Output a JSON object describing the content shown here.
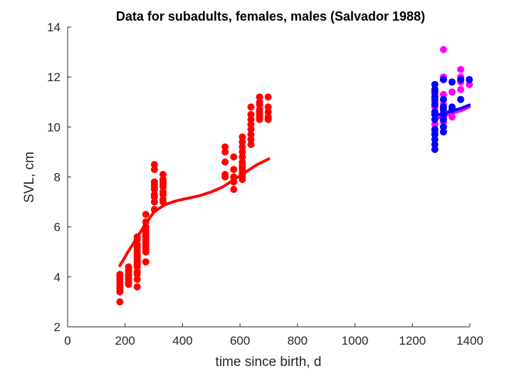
{
  "chart_data": {
    "type": "scatter",
    "title": "Data for subadults, females, males (Salvador 1988)",
    "xlabel": "time since birth, d",
    "ylabel": "SVL, cm",
    "xlim": [
      0,
      1400
    ],
    "ylim": [
      2,
      14
    ],
    "xticks": [
      "0",
      "200",
      "400",
      "600",
      "800",
      "1000",
      "1200",
      "1400"
    ],
    "yticks": [
      "2",
      "4",
      "6",
      "8",
      "10",
      "12",
      "14"
    ],
    "grid": false,
    "legend": "none",
    "colors": {
      "subadults": "#ff0000",
      "females": "#ff00ff",
      "males": "#0000ff"
    },
    "series": [
      {
        "kind": "points",
        "color": "#ff0000",
        "x": [
          182,
          182,
          182,
          182,
          182,
          182,
          182,
          182,
          182,
          212,
          212,
          212,
          212,
          212,
          212,
          212,
          212,
          212,
          212,
          212,
          242,
          242,
          242,
          242,
          242,
          242,
          242,
          242,
          242,
          242,
          242,
          242,
          242,
          242,
          242,
          242,
          272,
          272,
          272,
          272,
          272,
          272,
          272,
          272,
          272,
          272,
          272,
          272,
          272,
          272,
          302,
          302,
          302,
          302,
          302,
          302,
          302,
          302,
          302,
          302,
          332,
          332,
          332,
          332,
          332,
          332,
          332,
          332,
          332,
          548,
          548,
          548,
          548,
          548,
          578,
          578,
          578,
          578,
          578,
          608,
          608,
          608,
          608,
          608,
          608,
          608,
          608,
          608,
          608,
          608,
          608,
          608,
          638,
          638,
          638,
          638,
          638,
          638,
          638,
          638,
          668,
          668,
          668,
          668,
          668,
          668,
          668,
          668,
          698,
          698,
          698,
          698,
          698
        ],
        "y": [
          3.0,
          3.4,
          3.5,
          3.6,
          3.7,
          3.8,
          3.9,
          4.0,
          4.1,
          3.7,
          3.8,
          3.9,
          4.0,
          4.1,
          4.2,
          4.3,
          4.4,
          3.75,
          3.95,
          4.05,
          3.6,
          3.9,
          4.1,
          4.2,
          4.4,
          4.5,
          4.6,
          4.7,
          4.8,
          4.9,
          5.0,
          5.1,
          5.2,
          5.3,
          5.5,
          5.6,
          4.6,
          5.0,
          5.1,
          5.3,
          5.4,
          5.5,
          5.6,
          5.7,
          5.8,
          5.9,
          6.0,
          6.2,
          6.5,
          5.2,
          6.7,
          7.0,
          7.2,
          7.3,
          7.5,
          7.6,
          7.7,
          7.8,
          8.3,
          8.5,
          7.0,
          7.1,
          7.3,
          7.4,
          7.6,
          7.7,
          7.8,
          7.9,
          8.1,
          8.0,
          8.1,
          8.6,
          9.0,
          9.2,
          7.5,
          7.8,
          8.0,
          8.3,
          8.8,
          7.9,
          8.0,
          8.1,
          8.2,
          8.3,
          8.4,
          8.5,
          8.6,
          8.8,
          9.0,
          9.2,
          9.4,
          9.6,
          9.3,
          9.5,
          9.7,
          9.9,
          10.1,
          10.3,
          10.5,
          10.8,
          10.3,
          10.4,
          10.5,
          10.6,
          10.7,
          10.9,
          11.0,
          11.2,
          10.3,
          10.4,
          10.6,
          10.8,
          11.2
        ]
      },
      {
        "kind": "curve",
        "color": "#ff0000",
        "x": [
          182,
          210,
          240,
          270,
          300,
          340,
          380,
          420,
          460,
          500,
          540,
          580,
          620,
          660,
          700
        ],
        "y": [
          4.45,
          5.0,
          5.55,
          6.1,
          6.6,
          6.9,
          7.05,
          7.15,
          7.25,
          7.4,
          7.6,
          7.9,
          8.2,
          8.5,
          8.72
        ]
      },
      {
        "kind": "points",
        "color": "#ff00ff",
        "x": [
          1278,
          1278,
          1278,
          1278,
          1278,
          1278,
          1278,
          1308,
          1308,
          1308,
          1308,
          1308,
          1308,
          1308,
          1308,
          1338,
          1338,
          1338,
          1368,
          1368,
          1368,
          1368,
          1398
        ],
        "y": [
          9.8,
          10.1,
          10.5,
          10.8,
          11.0,
          11.3,
          11.5,
          10.2,
          10.4,
          10.6,
          10.9,
          11.3,
          11.9,
          12.0,
          13.1,
          10.4,
          10.7,
          11.4,
          11.5,
          11.8,
          12.0,
          12.3,
          11.7
        ]
      },
      {
        "kind": "curve",
        "color": "#ff00ff",
        "x": [
          1278,
          1310,
          1340,
          1370,
          1398
        ],
        "y": [
          10.3,
          10.45,
          10.55,
          10.65,
          10.8
        ]
      },
      {
        "kind": "points",
        "color": "#0000ff",
        "x": [
          1278,
          1278,
          1278,
          1278,
          1278,
          1278,
          1278,
          1278,
          1278,
          1278,
          1278,
          1278,
          1278,
          1278,
          1308,
          1308,
          1308,
          1308,
          1308,
          1308,
          1308,
          1308,
          1338,
          1338,
          1338,
          1368,
          1368,
          1398
        ],
        "y": [
          9.1,
          9.3,
          9.5,
          9.7,
          9.9,
          10.3,
          10.5,
          10.6,
          10.9,
          11.1,
          11.2,
          11.4,
          11.5,
          11.7,
          9.8,
          10.0,
          10.3,
          10.5,
          10.7,
          10.8,
          11.1,
          11.9,
          10.7,
          10.8,
          11.8,
          11.1,
          11.9,
          11.9
        ]
      },
      {
        "kind": "curve",
        "color": "#0000ff",
        "x": [
          1278,
          1310,
          1340,
          1370,
          1398
        ],
        "y": [
          10.45,
          10.55,
          10.65,
          10.75,
          10.88
        ]
      }
    ]
  }
}
